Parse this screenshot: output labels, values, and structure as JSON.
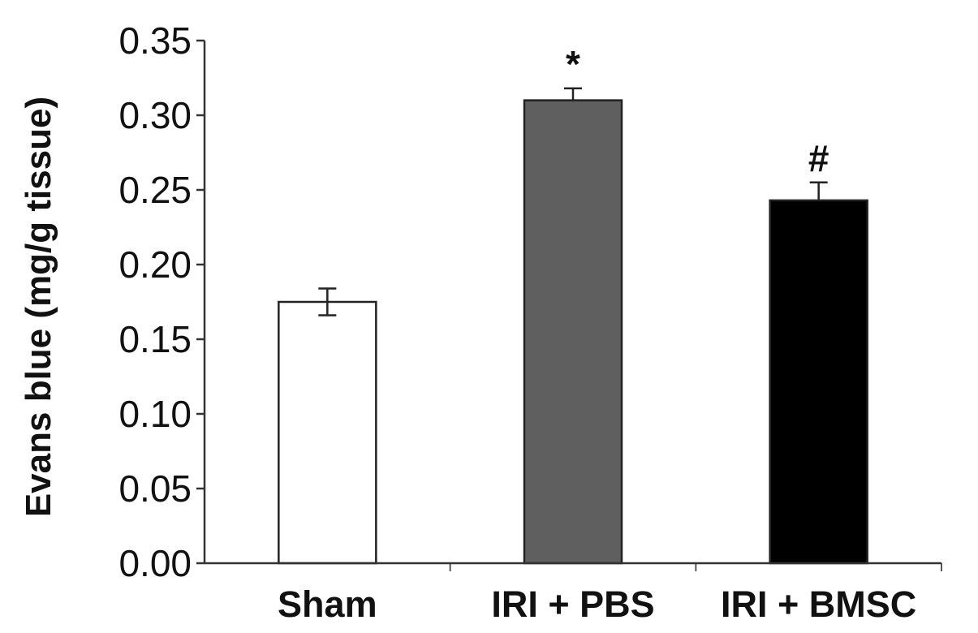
{
  "chart_data": {
    "type": "bar",
    "categories": [
      "Sham",
      "IRI + PBS",
      "IRI + BMSC"
    ],
    "values": [
      0.175,
      0.31,
      0.243
    ],
    "errors": [
      0.009,
      0.008,
      0.012
    ],
    "significance": [
      "",
      "*",
      "#"
    ],
    "bar_colors": [
      "#ffffff",
      "#5f5f5f",
      "#000000"
    ],
    "title": "",
    "xlabel": "",
    "ylabel": "Evans blue (mg/g tissue)",
    "ylim": [
      0,
      0.35
    ],
    "yticks": [
      "0.00",
      "0.05",
      "0.10",
      "0.15",
      "0.20",
      "0.25",
      "0.30",
      "0.35"
    ],
    "grid": false,
    "legend": "none"
  }
}
